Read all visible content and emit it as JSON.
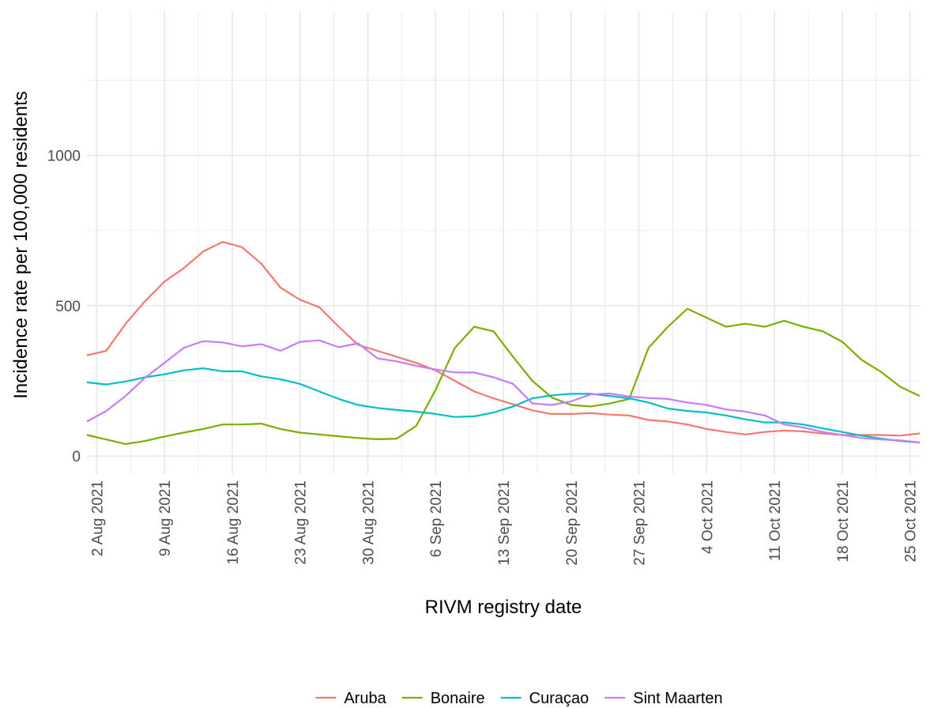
{
  "chart_data": {
    "type": "line",
    "x_label": "RIVM registry date",
    "y_label": "Incidence rate per 100,000 residents",
    "x": [
      "2021-08-01",
      "2021-08-03",
      "2021-08-05",
      "2021-08-07",
      "2021-08-09",
      "2021-08-11",
      "2021-08-13",
      "2021-08-15",
      "2021-08-17",
      "2021-08-19",
      "2021-08-21",
      "2021-08-23",
      "2021-08-25",
      "2021-08-27",
      "2021-08-29",
      "2021-08-31",
      "2021-09-02",
      "2021-09-04",
      "2021-09-06",
      "2021-09-08",
      "2021-09-10",
      "2021-09-12",
      "2021-09-14",
      "2021-09-16",
      "2021-09-18",
      "2021-09-20",
      "2021-09-22",
      "2021-09-24",
      "2021-09-26",
      "2021-09-28",
      "2021-09-30",
      "2021-10-02",
      "2021-10-04",
      "2021-10-06",
      "2021-10-08",
      "2021-10-10",
      "2021-10-12",
      "2021-10-14",
      "2021-10-16",
      "2021-10-18",
      "2021-10-20",
      "2021-10-22",
      "2021-10-24",
      "2021-10-26"
    ],
    "series": [
      {
        "name": "Aruba",
        "color": "#F8766D",
        "values": [
          335,
          350,
          440,
          515,
          580,
          625,
          680,
          712,
          695,
          640,
          560,
          520,
          495,
          430,
          370,
          350,
          330,
          310,
          285,
          250,
          215,
          192,
          172,
          152,
          140,
          140,
          143,
          138,
          135,
          120,
          115,
          105,
          90,
          80,
          72,
          80,
          85,
          82,
          75,
          70,
          70,
          70,
          68,
          75
        ]
      },
      {
        "name": "Bonaire",
        "color": "#7CAE00",
        "values": [
          70,
          55,
          40,
          50,
          65,
          78,
          90,
          105,
          105,
          108,
          90,
          78,
          72,
          66,
          60,
          56,
          58,
          100,
          220,
          360,
          430,
          415,
          330,
          250,
          195,
          170,
          165,
          175,
          190,
          360,
          430,
          490,
          460,
          430,
          440,
          430,
          450,
          430,
          415,
          380,
          320,
          280,
          230,
          200
        ]
      },
      {
        "name": "Curaçao",
        "color": "#00BFC4",
        "values": [
          245,
          238,
          248,
          262,
          272,
          285,
          292,
          282,
          282,
          265,
          255,
          240,
          215,
          190,
          170,
          160,
          153,
          148,
          140,
          130,
          132,
          145,
          165,
          192,
          202,
          207,
          207,
          200,
          192,
          178,
          158,
          150,
          145,
          135,
          122,
          112,
          112,
          105,
          92,
          80,
          68,
          58,
          50,
          45
        ]
      },
      {
        "name": "Sint Maarten",
        "color": "#C77CFF",
        "values": [
          115,
          150,
          200,
          260,
          310,
          360,
          382,
          378,
          365,
          372,
          350,
          380,
          385,
          362,
          375,
          325,
          315,
          300,
          288,
          278,
          278,
          262,
          240,
          175,
          170,
          182,
          205,
          208,
          198,
          193,
          190,
          178,
          170,
          155,
          148,
          135,
          105,
          95,
          80,
          70,
          60,
          55,
          52,
          45
        ]
      }
    ],
    "xlim": [
      "2021-08-01",
      "2021-10-26"
    ],
    "xticks": [
      {
        "value": "2021-08-02",
        "label": "2 Aug 2021"
      },
      {
        "value": "2021-08-09",
        "label": "9 Aug 2021"
      },
      {
        "value": "2021-08-16",
        "label": "16 Aug 2021"
      },
      {
        "value": "2021-08-23",
        "label": "23 Aug 2021"
      },
      {
        "value": "2021-08-30",
        "label": "30 Aug 2021"
      },
      {
        "value": "2021-09-06",
        "label": "6 Sep 2021"
      },
      {
        "value": "2021-09-13",
        "label": "13 Sep 2021"
      },
      {
        "value": "2021-09-20",
        "label": "20 Sep 2021"
      },
      {
        "value": "2021-09-27",
        "label": "27 Sep 2021"
      },
      {
        "value": "2021-10-04",
        "label": "4 Oct 2021"
      },
      {
        "value": "2021-10-11",
        "label": "11 Oct 2021"
      },
      {
        "value": "2021-10-18",
        "label": "18 Oct 2021"
      },
      {
        "value": "2021-10-25",
        "label": "25 Oct 2021"
      }
    ],
    "ylim": [
      -60,
      1480
    ],
    "yticks": [
      0,
      500,
      1000
    ],
    "grid": true,
    "minor_grid": true,
    "legend": "bottom"
  }
}
